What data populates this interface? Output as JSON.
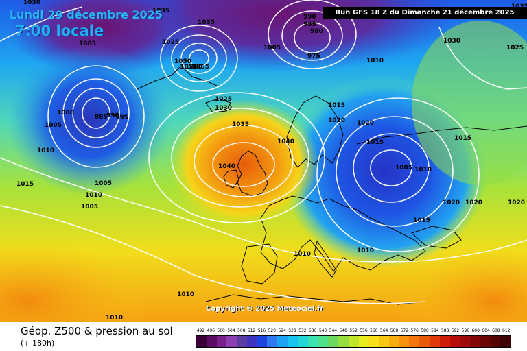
{
  "map": {
    "date_label": "Lundi 29 décembre 2025",
    "time_label": "7:00 locale",
    "run_label": "Run GFS 18 Z du Dimanche 21 décembre 2025",
    "copyright": "Copyright © 2025 Meteociel.fr",
    "product_title": "Géop. Z500 & pression au sol",
    "lead_time": "(+ 180h)",
    "isobar_labels": [
      "1030",
      "1035",
      "1035",
      "1005",
      "1025",
      "1005",
      "990",
      "985",
      "980",
      "975",
      "1010",
      "1030",
      "1025",
      "1035",
      "1050",
      "1055",
      "1060",
      "1065",
      "1000",
      "985",
      "990",
      "995",
      "1005",
      "1025",
      "1030",
      "1035",
      "1040",
      "1040",
      "1015",
      "1020",
      "1020",
      "1015",
      "1005",
      "1010",
      "1015",
      "1010",
      "1005",
      "1005",
      "1015",
      "1020",
      "1020",
      "1020",
      "1015",
      "1010",
      "1010",
      "1010",
      "1010",
      "1010"
    ]
  },
  "scale": {
    "labels": [
      "492",
      "496",
      "500",
      "504",
      "508",
      "512",
      "516",
      "520",
      "524",
      "528",
      "532",
      "536",
      "540",
      "544",
      "548",
      "552",
      "556",
      "560",
      "564",
      "568",
      "572",
      "576",
      "580",
      "584",
      "588",
      "592",
      "596",
      "600",
      "604",
      "608",
      "612"
    ],
    "colors": [
      "#3a0038",
      "#5b0e63",
      "#7b1f8c",
      "#8b3fb0",
      "#5a3ea3",
      "#3f33c2",
      "#1d44e0",
      "#2f78f0",
      "#1ca2f2",
      "#19c4f0",
      "#26d6d6",
      "#3be3b0",
      "#4fe08a",
      "#6bd85f",
      "#95de3e",
      "#c0e62c",
      "#e6ec20",
      "#f6e01c",
      "#f8c714",
      "#f8ad10",
      "#f6920e",
      "#f2760c",
      "#ea5a0b",
      "#e03a0a",
      "#cf1f0a",
      "#b80d0d",
      "#9f0a0a",
      "#850808",
      "#6a0606",
      "#520505",
      "#3c0404"
    ]
  }
}
